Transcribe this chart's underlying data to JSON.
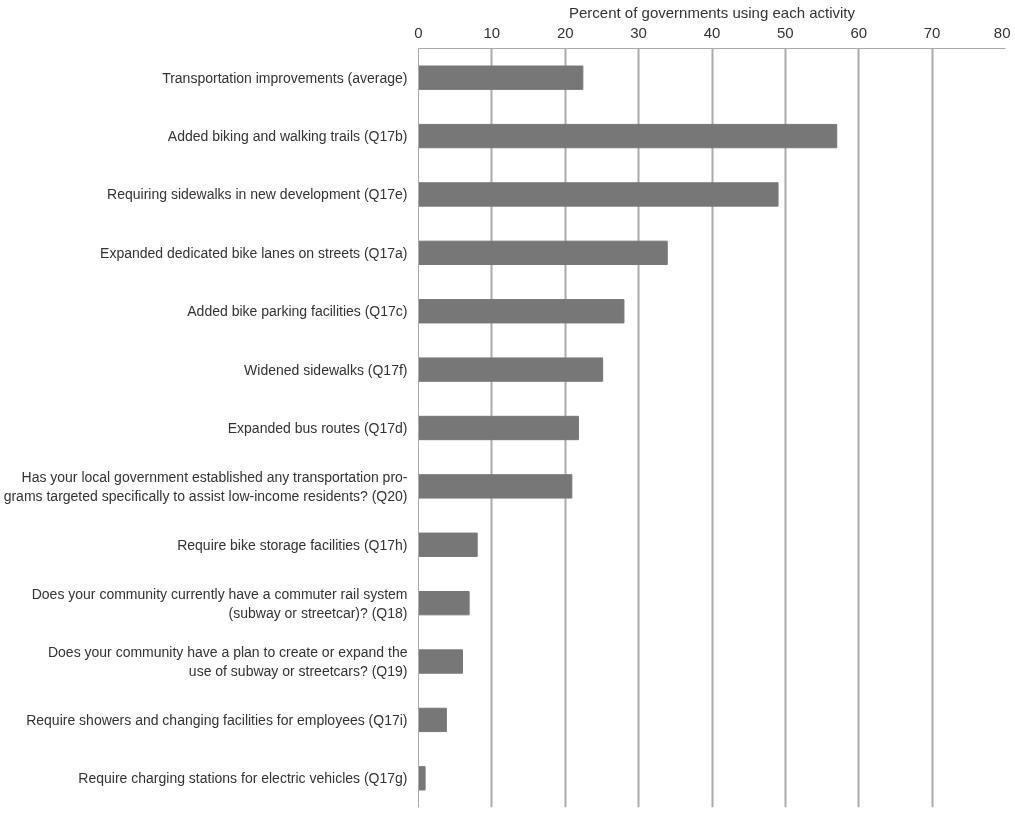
{
  "chart_data": {
    "type": "bar",
    "orientation": "horizontal",
    "xlabel": "Percent of governments using each activity",
    "categories": [
      "Transportation improvements (average)",
      "Added biking and walking trails (Q17b)",
      "Requiring sidewalks in new development (Q17e)",
      "Expanded dedicated bike lanes on streets (Q17a)",
      "Added bike parking facilities (Q17c)",
      "Widened sidewalks (Q17f)",
      "Expanded bus routes (Q17d)",
      "Has your local government established any transportation pro-\ngrams targeted specifically to assist low-income residents? (Q20)",
      "Require bike storage facilities (Q17h)",
      "Does your community currently have a commuter rail system\n(subway or streetcar)? (Q18)",
      "Does your community have a plan to create or expand the\nuse of subway or streetcars? (Q19)",
      "Require showers and changing facilities for employees (Q17i)",
      "Require charging stations for electric vehicles (Q17g)"
    ],
    "values": [
      22.4,
      57,
      49,
      33.9,
      28,
      25.1,
      21.8,
      20.9,
      8,
      6.9,
      6,
      3.8,
      0.9
    ],
    "color": "#777777",
    "xlim": [
      0,
      80
    ],
    "xticks": [
      0,
      10,
      20,
      30,
      40,
      50,
      60,
      70,
      80
    ],
    "grid": "x"
  }
}
